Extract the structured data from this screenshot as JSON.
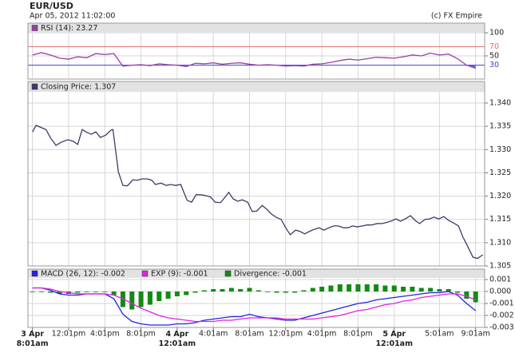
{
  "header": {
    "title": "EUR/USD",
    "subtitle": "Apr 05, 2012 11:02:00",
    "credit": "(c) FX Empire"
  },
  "chart_data": [
    {
      "type": "line",
      "x": [
        0,
        1,
        2,
        3,
        4,
        5,
        6,
        7,
        8,
        9,
        10,
        11,
        12,
        13,
        14,
        15,
        16,
        17,
        18,
        19,
        20,
        21,
        22,
        23,
        24,
        25,
        26,
        27,
        28,
        29,
        30,
        31,
        32,
        33,
        34,
        35,
        36,
        37,
        38,
        39,
        40,
        41,
        42,
        43,
        44,
        45,
        46,
        47,
        48,
        49
      ],
      "series": [
        {
          "name": "RSI (14): 23.27",
          "color": "#9a3fa6",
          "values": [
            52,
            57,
            52,
            45,
            43,
            48,
            46,
            55,
            53,
            55,
            28,
            30,
            31,
            29,
            33,
            31,
            30,
            27,
            34,
            33,
            35,
            32,
            34,
            35,
            32,
            30,
            31,
            30,
            28,
            29,
            28,
            32,
            33,
            36,
            40,
            43,
            41,
            44,
            47,
            46,
            45,
            48,
            52,
            50,
            56,
            52,
            54,
            44,
            30,
            23.27
          ]
        }
      ],
      "xlim": [
        -0.5,
        50
      ],
      "ylim": [
        0,
        100
      ],
      "yticks": [
        50,
        100
      ],
      "reference_lines": [
        {
          "value": 70,
          "color": "#e06c6c"
        },
        {
          "value": 30,
          "color": "#3f3fd6"
        }
      ],
      "oversold_fill": "#4b4be6",
      "grid": true
    },
    {
      "type": "line",
      "x": [
        0,
        0.4,
        1.0,
        1.5,
        2.0,
        2.6,
        3.2,
        3.9,
        4.5,
        5.0,
        5.5,
        6.0,
        6.5,
        7.0,
        7.5,
        8.1,
        8.7,
        8.9,
        9.5,
        10.0,
        10.5,
        11.1,
        11.6,
        12.1,
        12.7,
        13.2,
        13.6,
        14.2,
        14.8,
        15.3,
        15.8,
        16.4,
        16.7,
        17.1,
        17.6,
        18.1,
        18.6,
        19.2,
        19.7,
        20.2,
        20.8,
        21.3,
        21.7,
        22.2,
        22.7,
        23.2,
        23.8,
        24.3,
        24.8,
        25.4,
        25.9,
        26.4,
        26.9,
        27.5,
        28.0,
        28.5,
        29.1,
        29.6,
        30.1,
        30.6,
        31.2,
        31.7,
        32.2,
        32.8,
        33.3,
        33.8,
        34.4,
        34.9,
        35.4,
        35.9,
        36.5,
        37.0,
        37.5,
        38.1,
        38.6,
        39.1,
        39.6,
        40.2,
        40.7,
        41.2,
        41.8,
        42.3,
        42.8,
        43.4,
        43.9,
        44.4,
        44.9,
        45.5,
        46.0,
        46.5,
        47.1,
        47.6,
        48.1,
        48.7,
        49.2,
        49.8
      ],
      "series": [
        {
          "name": "Closing Price: 1.307",
          "color": "#3b3b68",
          "values": [
            1.3338,
            1.3352,
            1.3347,
            1.3343,
            1.3325,
            1.3309,
            1.3316,
            1.3321,
            1.3318,
            1.3311,
            1.3343,
            1.3337,
            1.3333,
            1.3338,
            1.3326,
            1.3331,
            1.3342,
            1.3343,
            1.3252,
            1.3223,
            1.3222,
            1.3235,
            1.3234,
            1.3237,
            1.3237,
            1.3234,
            1.3225,
            1.3228,
            1.3223,
            1.3225,
            1.3223,
            1.3225,
            1.321,
            1.3191,
            1.3187,
            1.3203,
            1.3203,
            1.3201,
            1.3198,
            1.3187,
            1.3186,
            1.3198,
            1.3208,
            1.3194,
            1.3189,
            1.3192,
            1.3187,
            1.3167,
            1.3168,
            1.318,
            1.3172,
            1.3162,
            1.3155,
            1.315,
            1.3132,
            1.3117,
            1.3127,
            1.3124,
            1.3119,
            1.3124,
            1.3129,
            1.3132,
            1.3127,
            1.3132,
            1.3136,
            1.3136,
            1.3132,
            1.3132,
            1.3136,
            1.3134,
            1.3136,
            1.3138,
            1.3138,
            1.3141,
            1.3141,
            1.3143,
            1.3146,
            1.3151,
            1.3146,
            1.3151,
            1.3158,
            1.3148,
            1.3141,
            1.315,
            1.3151,
            1.3155,
            1.3151,
            1.3156,
            1.3148,
            1.3143,
            1.3136,
            1.3112,
            1.3093,
            1.3069,
            1.3066,
            1.3074
          ]
        }
      ],
      "xlim": [
        -0.5,
        50
      ],
      "ylim": [
        1.305,
        1.3424
      ],
      "yticks": [
        {
          "value": 1.34,
          "label": "1.340"
        },
        1.335,
        {
          "value": 1.33,
          "label": "1.330"
        },
        1.325,
        {
          "value": 1.32,
          "label": "1.320"
        },
        1.315,
        {
          "value": 1.31,
          "label": "1.310"
        },
        1.305
      ],
      "grid": true
    },
    {
      "type": "line",
      "x": [
        0,
        1,
        2,
        3,
        4,
        5,
        6,
        7,
        8,
        9,
        10,
        11,
        12,
        13,
        14,
        15,
        16,
        17,
        18,
        19,
        20,
        21,
        22,
        23,
        24,
        25,
        26,
        27,
        28,
        29,
        30,
        31,
        32,
        33,
        34,
        35,
        36,
        37,
        38,
        39,
        40,
        41,
        42,
        43,
        44,
        45,
        46,
        47,
        48,
        49
      ],
      "series": [
        {
          "name": "MACD (26, 12): -0.002",
          "color": "#2323e0",
          "type": "line",
          "values": [
            0.0003,
            0.0003,
            0.0001,
            -0.0002,
            -0.0003,
            -0.0003,
            -0.0002,
            -0.0002,
            -0.0002,
            -0.0006,
            -0.0019,
            -0.0025,
            -0.0027,
            -0.0028,
            -0.0028,
            -0.0028,
            -0.0027,
            -0.0027,
            -0.0026,
            -0.0024,
            -0.0023,
            -0.0022,
            -0.0021,
            -0.0021,
            -0.0019,
            -0.0021,
            -0.0022,
            -0.0023,
            -0.0024,
            -0.0024,
            -0.0022,
            -0.002,
            -0.0018,
            -0.0016,
            -0.0014,
            -0.0012,
            -0.001,
            -0.0009,
            -0.0007,
            -0.0006,
            -0.0005,
            -0.0004,
            -0.0003,
            -0.0002,
            -0.0001,
            -0.0001,
            0,
            -0.0003,
            -0.001,
            -0.0016
          ]
        },
        {
          "name": "EXP (9): -0.001",
          "color": "#e022e0",
          "type": "line",
          "values": [
            0.0003,
            0.0003,
            0.0002,
            0,
            -0.0001,
            -0.0002,
            -0.0002,
            -0.0002,
            -0.0002,
            -0.0003,
            -0.0006,
            -0.001,
            -0.0014,
            -0.0017,
            -0.002,
            -0.0022,
            -0.0023,
            -0.0024,
            -0.0025,
            -0.0025,
            -0.0025,
            -0.0024,
            -0.0024,
            -0.0023,
            -0.0022,
            -0.0022,
            -0.0022,
            -0.0022,
            -0.0023,
            -0.0023,
            -0.0023,
            -0.0023,
            -0.0022,
            -0.0021,
            -0.002,
            -0.0018,
            -0.0016,
            -0.0015,
            -0.0013,
            -0.0011,
            -0.001,
            -0.0008,
            -0.0007,
            -0.0005,
            -0.0004,
            -0.0003,
            -0.0002,
            -0.0002,
            -0.0004,
            -0.0007
          ]
        },
        {
          "name": "Divergence: -0.001",
          "color": "#138a13",
          "type": "bar",
          "values": [
            0,
            0,
            -0.0001,
            -0.0002,
            -0.0002,
            -0.0001,
            0,
            0,
            0,
            -0.0003,
            -0.0013,
            -0.0015,
            -0.0013,
            -0.0011,
            -0.0008,
            -0.0006,
            -0.0004,
            -0.0003,
            -0.0001,
            0.0001,
            0.0002,
            0.0002,
            0.0003,
            0.0002,
            0.0003,
            0.0001,
            0,
            -0.0001,
            -0.0001,
            -0.0001,
            0.0001,
            0.0003,
            0.0004,
            0.0005,
            0.0006,
            0.0006,
            0.0006,
            0.0006,
            0.0006,
            0.0005,
            0.0005,
            0.0004,
            0.0004,
            0.0003,
            0.0003,
            0.0002,
            0.0002,
            -0.0001,
            -0.0006,
            -0.0009
          ]
        }
      ],
      "xlim": [
        -0.5,
        50
      ],
      "ylim": [
        -0.003,
        0.001
      ],
      "yticks": [
        0.001,
        {
          "value": 0,
          "label": "0.000"
        },
        -0.001,
        -0.002,
        -0.003
      ],
      "xticks": [
        {
          "value": 0,
          "label": [
            "3 Apr",
            "8:01am"
          ]
        },
        {
          "value": 4,
          "label": "12:01pm"
        },
        {
          "value": 8,
          "label": "4:01pm"
        },
        {
          "value": 12,
          "label": "8:01pm"
        },
        {
          "value": 16,
          "label": [
            "4 Apr",
            "12:01am"
          ]
        },
        {
          "value": 20,
          "label": "4:01am"
        },
        {
          "value": 24,
          "label": "8:01am"
        },
        {
          "value": 28,
          "label": "12:01pm"
        },
        {
          "value": 32,
          "label": "4:01pm"
        },
        {
          "value": 36,
          "label": "8:01pm"
        },
        {
          "value": 40,
          "label": [
            "5 Apr",
            "12:01am"
          ]
        },
        {
          "value": 45,
          "label": "5:01am"
        },
        {
          "value": 49,
          "label": "9:01am"
        }
      ],
      "grid": true
    }
  ]
}
